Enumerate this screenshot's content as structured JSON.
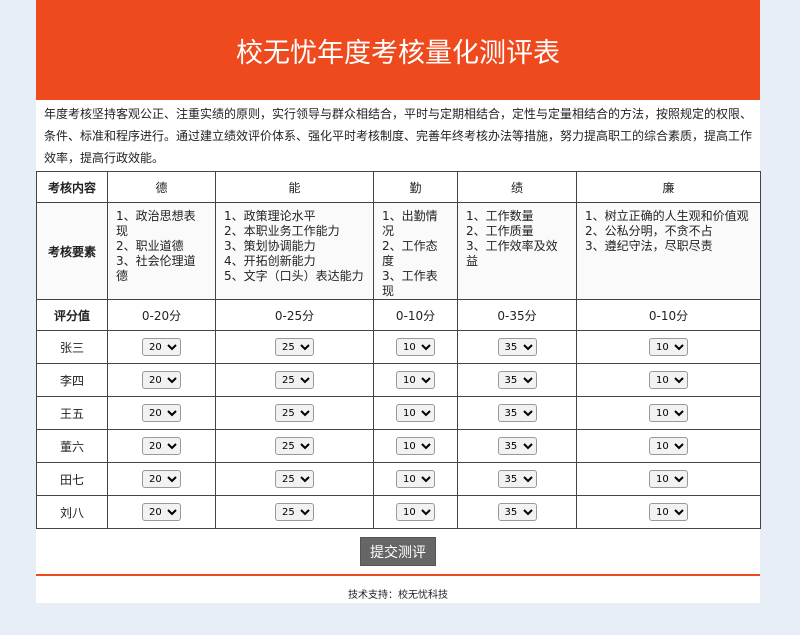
{
  "header": {
    "title": "校无忧年度考核量化测评表"
  },
  "intro": "年度考核坚持客观公正、注重实绩的原则，实行领导与群众相结合，平时与定期相结合，定性与定量相结合的方法，按照规定的权限、条件、标准和程序进行。通过建立绩效评价体系、强化平时考核制度、完善年终考核办法等措施，努力提高职工的综合素质，提高工作效率，提高行政效能。",
  "table": {
    "row_labels": {
      "content": "考核内容",
      "elements": "考核要素",
      "score": "评分值"
    },
    "columns": [
      {
        "name": "德",
        "elements": [
          "1、政治思想表现",
          "2、职业道德",
          "3、社会伦理道德"
        ],
        "range": "0-20分"
      },
      {
        "name": "能",
        "elements": [
          "1、政策理论水平",
          "2、本职业务工作能力",
          "3、策划协调能力",
          "4、开拓创新能力",
          "5、文字（口头）表达能力"
        ],
        "range": "0-25分"
      },
      {
        "name": "勤",
        "elements": [
          "1、出勤情况",
          "2、工作态度",
          "3、工作表现"
        ],
        "range": "0-10分"
      },
      {
        "name": "绩",
        "elements": [
          "1、工作数量",
          "2、工作质量",
          "3、工作效率及效益"
        ],
        "range": "0-35分"
      },
      {
        "name": "廉",
        "elements": [
          "1、树立正确的人生观和价值观",
          "2、公私分明，不贪不占",
          "3、遵纪守法，尽职尽责"
        ],
        "range": "0-10分"
      }
    ],
    "people": [
      {
        "name": "张三",
        "scores": [
          "20",
          "25",
          "10",
          "35",
          "10"
        ]
      },
      {
        "name": "李四",
        "scores": [
          "20",
          "25",
          "10",
          "35",
          "10"
        ]
      },
      {
        "name": "王五",
        "scores": [
          "20",
          "25",
          "10",
          "35",
          "10"
        ]
      },
      {
        "name": "董六",
        "scores": [
          "20",
          "25",
          "10",
          "35",
          "10"
        ]
      },
      {
        "name": "田七",
        "scores": [
          "20",
          "25",
          "10",
          "35",
          "10"
        ]
      },
      {
        "name": "刘八",
        "scores": [
          "20",
          "25",
          "10",
          "35",
          "10"
        ]
      }
    ]
  },
  "submit_label": "提交测评",
  "footer": "技术支持：校无忧科技",
  "colors": {
    "accent": "#ee4a1e",
    "button": "#666666",
    "background": "#e8eef6"
  }
}
